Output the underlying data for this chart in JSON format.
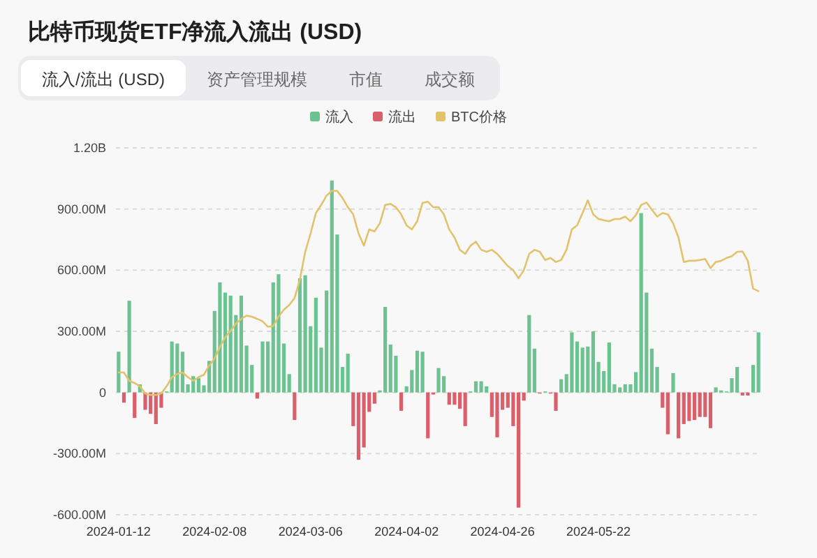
{
  "chart_data": {
    "type": "bar",
    "title": "比特币现货ETF净流入流出 (USD)",
    "annotations": [
      "流入/流出 (USD)",
      "资产管理规模",
      "市值",
      "成交额"
    ],
    "categories": [
      "2024-01-12",
      null,
      null,
      null,
      null,
      null,
      null,
      null,
      null,
      null,
      null,
      null,
      null,
      null,
      null,
      null,
      null,
      null,
      "2024-02-08",
      null,
      null,
      null,
      null,
      null,
      null,
      null,
      null,
      null,
      null,
      null,
      null,
      null,
      null,
      null,
      null,
      null,
      "2024-03-06",
      null,
      null,
      null,
      null,
      null,
      null,
      null,
      null,
      null,
      null,
      null,
      null,
      null,
      null,
      null,
      null,
      null,
      "2024-04-02",
      null,
      null,
      null,
      null,
      null,
      null,
      null,
      null,
      null,
      null,
      null,
      null,
      null,
      null,
      null,
      null,
      null,
      "2024-04-26",
      null,
      null,
      null,
      null,
      null,
      null,
      null,
      null,
      null,
      null,
      null,
      null,
      null,
      null,
      null,
      null,
      null,
      "2024-05-22",
      null,
      null,
      null,
      null,
      null,
      null,
      null,
      null,
      null,
      null,
      null,
      null,
      null,
      null,
      null,
      null,
      null,
      null,
      null,
      null,
      null,
      null,
      null,
      null,
      null,
      null,
      null,
      null,
      null,
      null
    ],
    "stacked": true,
    "ylim": [
      -600000000,
      1200000000
    ],
    "yticks": [
      {
        "value": -600000000,
        "label": "-600.00M"
      },
      {
        "value": -300000000,
        "label": "-300.00M"
      },
      0,
      {
        "value": 300000000,
        "label": "300.00M"
      },
      {
        "value": 600000000,
        "label": "600.00M"
      },
      {
        "value": 900000000,
        "label": "900.00M"
      },
      {
        "value": 1200000000,
        "label": "1.20B"
      }
    ],
    "grid": "y",
    "legend": "top",
    "series": [
      {
        "name": "流入",
        "color": "#6cc291",
        "values": [
          200000000,
          null,
          450000000,
          null,
          40000000,
          null,
          null,
          null,
          null,
          5000000,
          250000000,
          240000000,
          200000000,
          40000000,
          80000000,
          70000000,
          35000000,
          155000000,
          400000000,
          540000000,
          490000000,
          475000000,
          380000000,
          475000000,
          230000000,
          135000000,
          null,
          250000000,
          250000000,
          540000000,
          580000000,
          240000000,
          90000000,
          null,
          560000000,
          575000000,
          325000000,
          465000000,
          220000000,
          500000000,
          1040000000,
          775000000,
          125000000,
          190000000,
          null,
          null,
          null,
          null,
          null,
          10000000,
          420000000,
          235000000,
          180000000,
          null,
          30000000,
          110000000,
          205000000,
          200000000,
          null,
          null,
          120000000,
          80000000,
          null,
          null,
          null,
          null,
          5000000,
          55000000,
          55000000,
          30000000,
          null,
          null,
          null,
          null,
          null,
          null,
          null,
          380000000,
          215000000,
          null,
          5000000,
          null,
          null,
          65000000,
          90000000,
          295000000,
          250000000,
          220000000,
          225000000,
          300000000,
          150000000,
          105000000,
          245000000,
          40000000,
          25000000,
          40000000,
          40000000,
          100000000,
          880000000,
          490000000,
          215000000,
          125000000,
          null,
          null,
          95000000,
          null,
          null,
          null,
          null,
          null,
          null,
          null,
          25000000,
          10000000,
          5000000,
          70000000,
          125000000,
          null,
          null,
          135000000,
          295000000
        ]
      },
      {
        "name": "流出",
        "color": "#d95f6a",
        "values": [
          null,
          -50000000,
          null,
          -125000000,
          null,
          -85000000,
          -105000000,
          -155000000,
          -75000000,
          null,
          null,
          null,
          null,
          null,
          null,
          null,
          null,
          null,
          null,
          null,
          null,
          null,
          null,
          null,
          null,
          null,
          -30000000,
          null,
          null,
          null,
          null,
          null,
          null,
          -135000000,
          null,
          null,
          null,
          null,
          null,
          null,
          null,
          null,
          null,
          null,
          -165000000,
          -330000000,
          -270000000,
          -95000000,
          -55000000,
          null,
          null,
          null,
          null,
          -90000000,
          null,
          null,
          null,
          null,
          -225000000,
          -10000000,
          null,
          null,
          -60000000,
          -60000000,
          -80000000,
          -165000000,
          null,
          null,
          null,
          null,
          -120000000,
          -220000000,
          -85000000,
          -75000000,
          -165000000,
          -565000000,
          -40000000,
          null,
          null,
          -5000000,
          null,
          -5000000,
          -90000000,
          null,
          null,
          null,
          null,
          null,
          null,
          null,
          null,
          null,
          null,
          null,
          null,
          null,
          null,
          null,
          null,
          null,
          null,
          null,
          -75000000,
          -205000000,
          null,
          -225000000,
          -155000000,
          -140000000,
          -135000000,
          -120000000,
          -120000000,
          -175000000,
          null,
          null,
          null,
          null,
          null,
          -15000000,
          -15000000,
          null,
          null
        ]
      },
      {
        "name": "BTC价格",
        "type": "line",
        "color": "#e2c36b",
        "values": [
          98000000,
          98000000,
          57000000,
          46000000,
          30000000,
          -5000000,
          -12000000,
          -12000000,
          -5000000,
          30000000,
          75000000,
          91000000,
          98000000,
          75000000,
          57000000,
          75000000,
          87000000,
          132000000,
          166000000,
          224000000,
          270000000,
          303000000,
          338000000,
          361000000,
          377000000,
          372000000,
          361000000,
          349000000,
          322000000,
          326000000,
          372000000,
          406000000,
          429000000,
          463000000,
          554000000,
          690000000,
          780000000,
          880000000,
          920000000,
          966000000,
          989000000,
          989000000,
          954000000,
          909000000,
          874000000,
          780000000,
          720000000,
          800000000,
          790000000,
          830000000,
          920000000,
          925000000,
          909000000,
          874000000,
          820000000,
          800000000,
          840000000,
          930000000,
          936000000,
          909000000,
          909000000,
          874000000,
          800000000,
          760000000,
          700000000,
          680000000,
          720000000,
          740000000,
          700000000,
          690000000,
          700000000,
          680000000,
          650000000,
          620000000,
          600000000,
          560000000,
          600000000,
          680000000,
          700000000,
          690000000,
          650000000,
          660000000,
          640000000,
          650000000,
          700000000,
          800000000,
          820000000,
          880000000,
          943000000,
          874000000,
          851000000,
          845000000,
          840000000,
          851000000,
          851000000,
          863000000,
          840000000,
          870000000,
          920000000,
          932000000,
          897000000,
          863000000,
          880000000,
          874000000,
          829000000,
          760000000,
          640000000,
          646000000,
          646000000,
          650000000,
          655000000,
          610000000,
          640000000,
          646000000,
          660000000,
          669000000,
          690000000,
          692000000,
          646000000,
          509000000,
          497000000
        ]
      }
    ]
  }
}
